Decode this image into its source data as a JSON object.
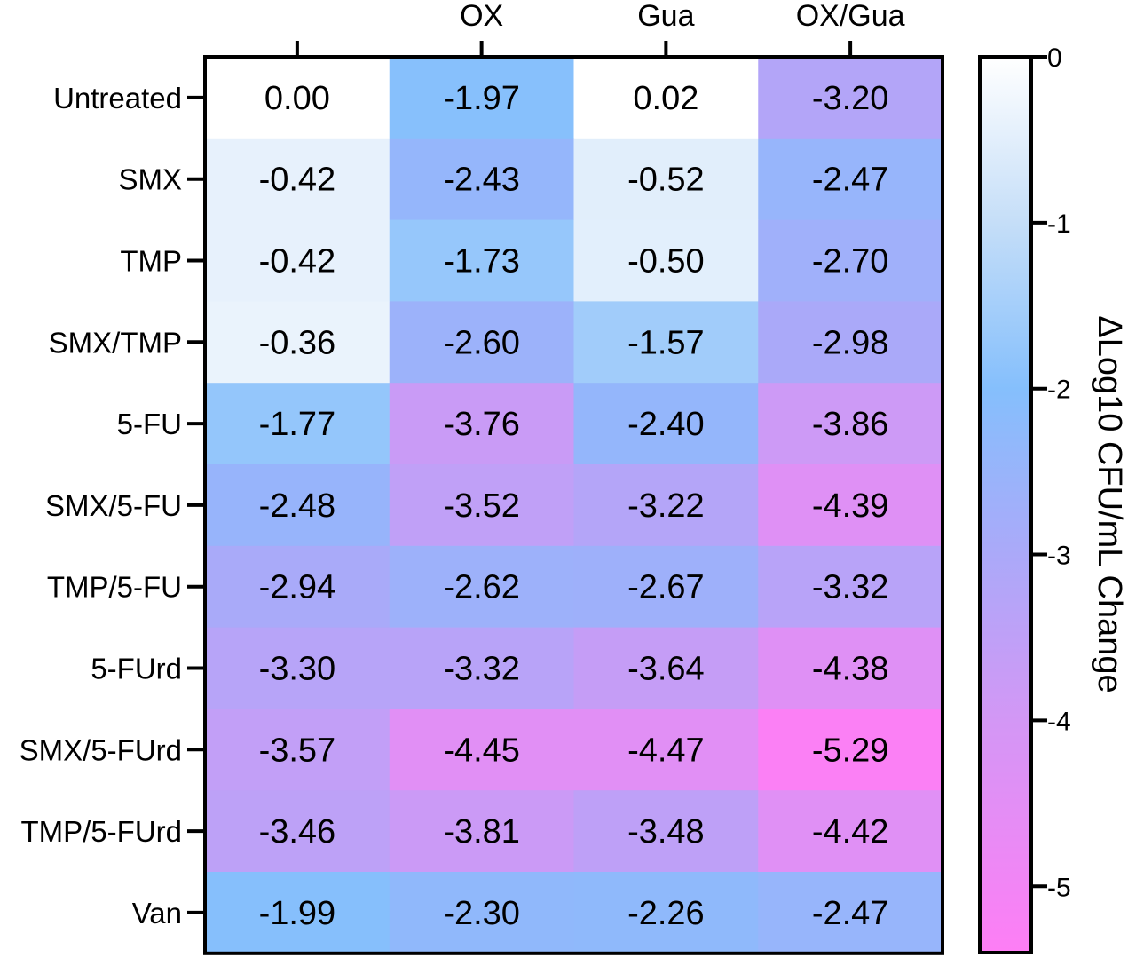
{
  "chart_data": {
    "type": "heatmap",
    "columns": [
      "",
      "OX",
      "Gua",
      "OX/Gua"
    ],
    "rows": [
      "Untreated",
      "SMX",
      "TMP",
      "SMX/TMP",
      "5-FU",
      "SMX/5-FU",
      "TMP/5-FU",
      "5-FUrd",
      "SMX/5-FUrd",
      "TMP/5-FUrd",
      "Van"
    ],
    "values": [
      [
        0.0,
        -1.97,
        0.02,
        -3.2
      ],
      [
        -0.42,
        -2.43,
        -0.52,
        -2.47
      ],
      [
        -0.42,
        -1.73,
        -0.5,
        -2.7
      ],
      [
        -0.36,
        -2.6,
        -1.57,
        -2.98
      ],
      [
        -1.77,
        -3.76,
        -2.4,
        -3.86
      ],
      [
        -2.48,
        -3.52,
        -3.22,
        -4.39
      ],
      [
        -2.94,
        -2.62,
        -2.67,
        -3.32
      ],
      [
        -3.3,
        -3.32,
        -3.64,
        -4.38
      ],
      [
        -3.57,
        -4.45,
        -4.47,
        -5.29
      ],
      [
        -3.46,
        -3.81,
        -3.48,
        -4.42
      ],
      [
        -1.99,
        -2.3,
        -2.26,
        -2.47
      ]
    ],
    "value_labels": [
      [
        "0.00",
        "-1.97",
        "0.02",
        "-3.20"
      ],
      [
        "-0.42",
        "-2.43",
        "-0.52",
        "-2.47"
      ],
      [
        "-0.42",
        "-1.73",
        "-0.50",
        "-2.70"
      ],
      [
        "-0.36",
        "-2.60",
        "-1.57",
        "-2.98"
      ],
      [
        "-1.77",
        "-3.76",
        "-2.40",
        "-3.86"
      ],
      [
        "-2.48",
        "-3.52",
        "-3.22",
        "-4.39"
      ],
      [
        "-2.94",
        "-2.62",
        "-2.67",
        "-3.32"
      ],
      [
        "-3.30",
        "-3.32",
        "-3.64",
        "-4.38"
      ],
      [
        "-3.57",
        "-4.45",
        "-4.47",
        "-5.29"
      ],
      [
        "-3.46",
        "-3.81",
        "-3.48",
        "-4.42"
      ],
      [
        "-1.99",
        "-2.30",
        "-2.26",
        "-2.47"
      ]
    ],
    "colorbar": {
      "title": "ΔLog10 CFU/mL Change",
      "range": [
        -5.4,
        0
      ],
      "ticks": [
        0,
        -1,
        -2,
        -3,
        -4,
        -5
      ],
      "tick_labels": [
        "0",
        "-1",
        "-2",
        "-3",
        "-4",
        "-5"
      ],
      "color_stops": [
        {
          "value": 0,
          "color": "#ffffff"
        },
        {
          "value": -1,
          "color": "#c5def8"
        },
        {
          "value": -2,
          "color": "#85bffc"
        },
        {
          "value": -3,
          "color": "#aba9f9"
        },
        {
          "value": -4,
          "color": "#d397f5"
        },
        {
          "value": -5.4,
          "color": "#fe7ef5"
        }
      ]
    }
  }
}
